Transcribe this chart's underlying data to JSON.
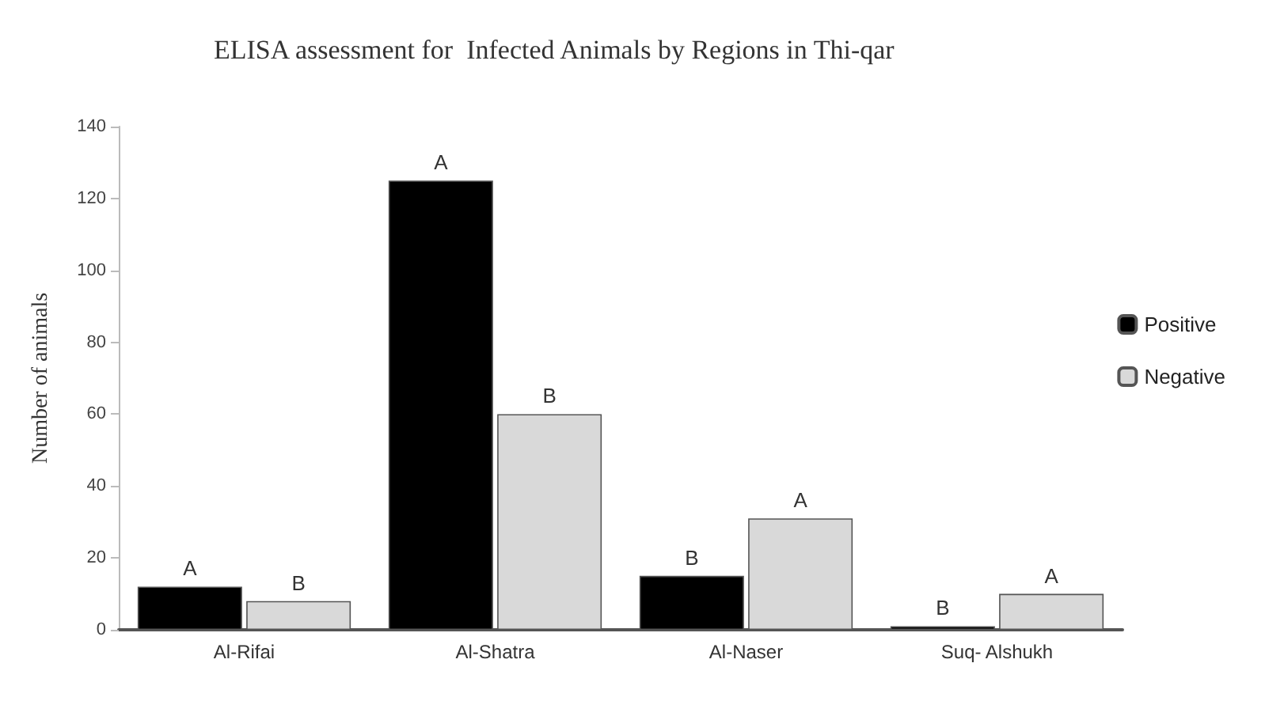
{
  "chart_data": {
    "type": "bar",
    "title": "ELISA assessment for  Infected Animals by Regions in Thi-qar",
    "ylabel": "Number of animals",
    "categories": [
      "Al-Rifai",
      "Al-Shatra",
      "Al-Naser",
      "Suq- Alshukh"
    ],
    "series": [
      {
        "name": "Positive",
        "color": "#000000",
        "values": [
          12,
          125,
          15,
          1
        ],
        "value_labels": [
          "A",
          "A",
          "B",
          "B"
        ]
      },
      {
        "name": "Negative",
        "color": "#d9d9d9",
        "values": [
          8,
          60,
          31,
          10
        ],
        "value_labels": [
          "B",
          "B",
          "A",
          "A"
        ]
      }
    ],
    "ylim": [
      0,
      140
    ],
    "yticks": [
      0,
      20,
      40,
      60,
      80,
      100,
      120,
      140
    ],
    "grid": false,
    "legend": "right"
  }
}
